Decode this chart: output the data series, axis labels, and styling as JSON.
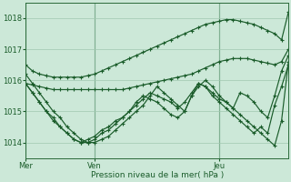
{
  "bg_color": "#cce8d8",
  "grid_color": "#a0c8b0",
  "line_color": "#1a5c2a",
  "xlabel": "Pression niveau de la mer( hPa )",
  "xlabel_color": "#1a5c2a",
  "ylim": [
    1013.5,
    1018.5
  ],
  "yticks": [
    1014,
    1015,
    1016,
    1017,
    1018
  ],
  "xtick_labels": [
    "Mer",
    "Ven",
    "Jeu"
  ],
  "xtick_positions": [
    0,
    10,
    28
  ],
  "series": [
    [
      1016.5,
      1016.3,
      1016.2,
      1016.15,
      1016.1,
      1016.1,
      1016.1,
      1016.1,
      1016.1,
      1016.15,
      1016.2,
      1016.3,
      1016.4,
      1016.5,
      1016.6,
      1016.7,
      1016.8,
      1016.9,
      1017.0,
      1017.1,
      1017.2,
      1017.3,
      1017.4,
      1017.5,
      1017.6,
      1017.7,
      1017.8,
      1017.85,
      1017.9,
      1017.95,
      1017.95,
      1017.9,
      1017.85,
      1017.8,
      1017.7,
      1017.6,
      1017.5,
      1017.3,
      1018.2
    ],
    [
      1015.9,
      1015.85,
      1015.8,
      1015.75,
      1015.7,
      1015.7,
      1015.7,
      1015.7,
      1015.7,
      1015.7,
      1015.7,
      1015.7,
      1015.7,
      1015.7,
      1015.7,
      1015.75,
      1015.8,
      1015.85,
      1015.9,
      1015.95,
      1016.0,
      1016.05,
      1016.1,
      1016.15,
      1016.2,
      1016.3,
      1016.4,
      1016.5,
      1016.6,
      1016.65,
      1016.7,
      1016.7,
      1016.7,
      1016.65,
      1016.6,
      1016.55,
      1016.5,
      1016.6,
      1017.0
    ],
    [
      1015.9,
      1015.6,
      1015.3,
      1015.0,
      1014.7,
      1014.5,
      1014.3,
      1014.1,
      1014.0,
      1014.1,
      1014.2,
      1014.4,
      1014.5,
      1014.7,
      1014.8,
      1015.0,
      1015.3,
      1015.5,
      1015.4,
      1015.3,
      1015.1,
      1014.9,
      1014.8,
      1015.0,
      1015.5,
      1015.9,
      1015.8,
      1015.6,
      1015.4,
      1015.3,
      1015.1,
      1014.9,
      1014.7,
      1014.5,
      1014.3,
      1014.1,
      1013.9,
      1014.7,
      1016.6
    ],
    [
      1015.9,
      1015.6,
      1015.3,
      1015.0,
      1014.8,
      1014.5,
      1014.3,
      1014.1,
      1014.0,
      1014.0,
      1014.1,
      1014.3,
      1014.4,
      1014.6,
      1014.8,
      1015.0,
      1015.2,
      1015.4,
      1015.6,
      1015.5,
      1015.4,
      1015.3,
      1015.1,
      1015.3,
      1015.6,
      1015.9,
      1015.8,
      1015.5,
      1015.3,
      1015.1,
      1014.9,
      1014.7,
      1014.5,
      1014.3,
      1014.5,
      1014.3,
      1015.2,
      1015.8,
      1016.5
    ],
    [
      1016.2,
      1015.9,
      1015.6,
      1015.3,
      1015.0,
      1014.8,
      1014.5,
      1014.3,
      1014.1,
      1014.0,
      1014.0,
      1014.1,
      1014.2,
      1014.4,
      1014.6,
      1014.8,
      1015.0,
      1015.2,
      1015.5,
      1015.8,
      1015.6,
      1015.4,
      1015.2,
      1015.0,
      1015.5,
      1015.8,
      1016.0,
      1015.8,
      1015.5,
      1015.3,
      1015.1,
      1015.6,
      1015.5,
      1015.3,
      1015.0,
      1014.8,
      1015.5,
      1016.3,
      1016.8
    ]
  ],
  "n_points": 39
}
